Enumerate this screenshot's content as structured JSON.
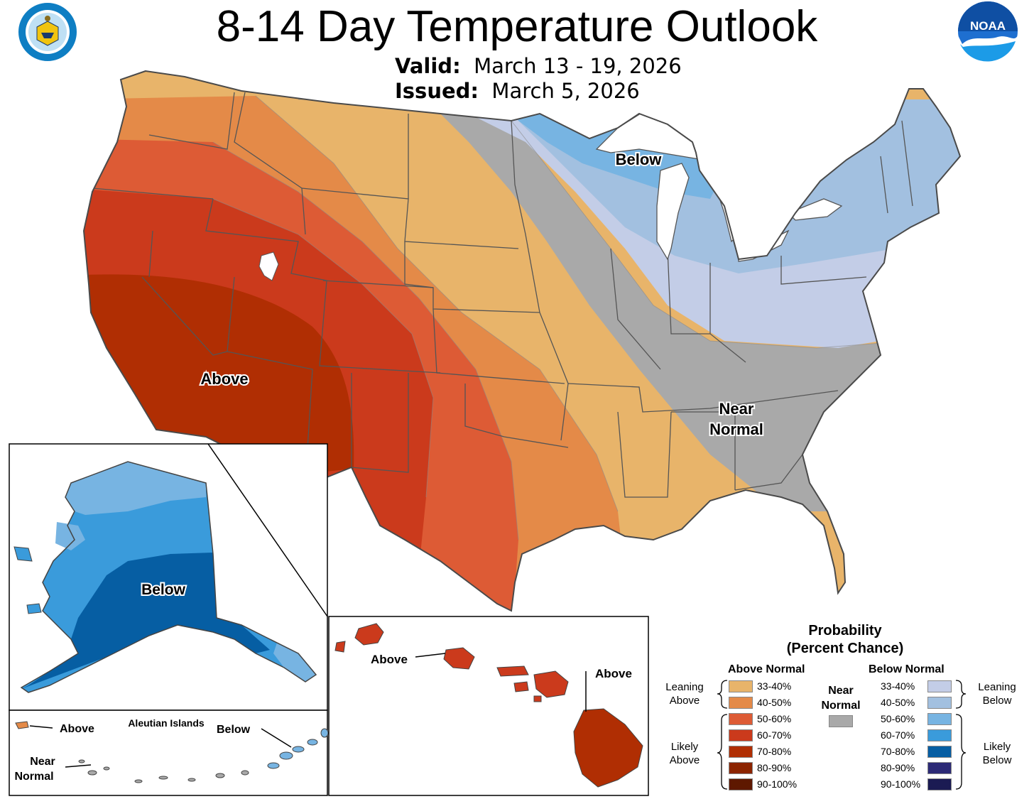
{
  "header": {
    "title": "8-14 Day Temperature Outlook",
    "valid_label": "Valid:",
    "valid_value": "March 13 - 19, 2026",
    "issued_label": "Issued:",
    "issued_value": "March 5, 2026"
  },
  "logos": {
    "commerce": "DEPARTMENT OF COMMERCE · UNITED STATES OF AMERICA",
    "noaa": "NOAA"
  },
  "map_labels": {
    "conus_above": "Above",
    "conus_below": "Below",
    "conus_near_1": "Near",
    "conus_near_2": "Normal",
    "alaska_below": "Below",
    "aleutian_title": "Aleutian Islands",
    "aleutian_above": "Above",
    "aleutian_below": "Below",
    "aleutian_near_1": "Near",
    "aleutian_near_2": "Normal",
    "hawaii_above_west": "Above",
    "hawaii_above_east": "Above"
  },
  "colors": {
    "above_33_40": "#E8B46A",
    "above_40_50": "#E48A48",
    "above_50_60": "#DD5B35",
    "above_60_70": "#CB3A1C",
    "above_70_80": "#B02E03",
    "above_80_90": "#8C2400",
    "above_90_100": "#5E1800",
    "near_normal": "#A9A9A9",
    "below_33_40": "#C3CDE7",
    "below_40_50": "#A2C0E0",
    "below_50_60": "#77B4E2",
    "below_60_70": "#3A9BDB",
    "below_70_80": "#065EA3",
    "below_80_90": "#2C2A76",
    "below_90_100": "#1B1B53"
  },
  "legend": {
    "title_1": "Probability",
    "title_2": "(Percent Chance)",
    "above_header": "Above Normal",
    "below_header": "Below Normal",
    "near_1": "Near",
    "near_2": "Normal",
    "leaning_above_1": "Leaning",
    "leaning_above_2": "Above",
    "likely_above_1": "Likely",
    "likely_above_2": "Above",
    "leaning_below_1": "Leaning",
    "leaning_below_2": "Below",
    "likely_below_1": "Likely",
    "likely_below_2": "Below",
    "above": [
      {
        "range": "33-40%",
        "color": "#E8B46A"
      },
      {
        "range": "40-50%",
        "color": "#E48A48"
      },
      {
        "range": "50-60%",
        "color": "#DD5B35"
      },
      {
        "range": "60-70%",
        "color": "#CB3A1C"
      },
      {
        "range": "70-80%",
        "color": "#B02E03"
      },
      {
        "range": "80-90%",
        "color": "#8C2400"
      },
      {
        "range": "90-100%",
        "color": "#5E1800"
      }
    ],
    "below": [
      {
        "range": "33-40%",
        "color": "#C3CDE7"
      },
      {
        "range": "40-50%",
        "color": "#A2C0E0"
      },
      {
        "range": "50-60%",
        "color": "#77B4E2"
      },
      {
        "range": "60-70%",
        "color": "#3A9BDB"
      },
      {
        "range": "70-80%",
        "color": "#065EA3"
      },
      {
        "range": "80-90%",
        "color": "#2C2A76"
      },
      {
        "range": "90-100%",
        "color": "#1B1B53"
      }
    ]
  }
}
